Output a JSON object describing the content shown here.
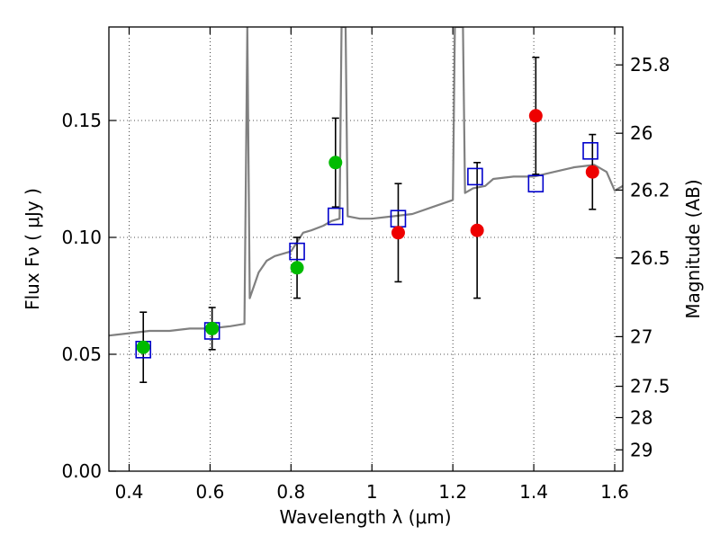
{
  "chart_data": {
    "type": "scatter",
    "xlabel": "Wavelength  λ (μm)",
    "ylabel": "Flux  Fν  ( μJy )",
    "y2label": "Magnitude (AB)",
    "xlim": [
      0.35,
      1.62
    ],
    "ylim": [
      0.0,
      0.19
    ],
    "x_ticks": [
      0.4,
      0.6,
      0.8,
      1.0,
      1.2,
      1.4,
      1.6
    ],
    "x_tick_labels": [
      "0.4",
      "0.6",
      "0.8",
      "1",
      "1.2",
      "1.4",
      "1.6"
    ],
    "y_ticks": [
      0.0,
      0.05,
      0.1,
      0.15
    ],
    "y_tick_labels": [
      "0.00",
      "0.05",
      "0.10",
      "0.15"
    ],
    "mag_ticks": [
      25.8,
      26,
      26.2,
      26.5,
      27,
      27.5,
      28,
      29
    ],
    "mag_tick_labels": [
      "25.8",
      "26",
      "26.2",
      "26.5",
      "27",
      "27.5",
      "28",
      "29"
    ],
    "grid": true,
    "colors": {
      "spectrum": "#808080",
      "model_marker": "#0000cc",
      "obs_green": "#00bb00",
      "obs_red": "#ee0000",
      "errorbar": "#000000"
    },
    "series": [
      {
        "marker": "line",
        "color": "#808080",
        "points": [
          [
            0.35,
            0.058
          ],
          [
            0.4,
            0.059
          ],
          [
            0.45,
            0.06
          ],
          [
            0.5,
            0.06
          ],
          [
            0.55,
            0.061
          ],
          [
            0.6,
            0.061
          ],
          [
            0.65,
            0.062
          ],
          [
            0.685,
            0.063
          ],
          [
            0.692,
            0.19
          ],
          [
            0.698,
            0.074
          ],
          [
            0.72,
            0.085
          ],
          [
            0.74,
            0.09
          ],
          [
            0.76,
            0.092
          ],
          [
            0.78,
            0.093
          ],
          [
            0.8,
            0.094
          ],
          [
            0.83,
            0.102
          ],
          [
            0.85,
            0.103
          ],
          [
            0.88,
            0.105
          ],
          [
            0.9,
            0.107
          ],
          [
            0.92,
            0.108
          ],
          [
            0.925,
            0.19
          ],
          [
            0.935,
            0.19
          ],
          [
            0.94,
            0.109
          ],
          [
            0.97,
            0.108
          ],
          [
            1.0,
            0.108
          ],
          [
            1.05,
            0.109
          ],
          [
            1.1,
            0.11
          ],
          [
            1.15,
            0.113
          ],
          [
            1.2,
            0.116
          ],
          [
            1.205,
            0.19
          ],
          [
            1.225,
            0.19
          ],
          [
            1.23,
            0.119
          ],
          [
            1.25,
            0.121
          ],
          [
            1.28,
            0.122
          ],
          [
            1.3,
            0.125
          ],
          [
            1.35,
            0.126
          ],
          [
            1.4,
            0.126
          ],
          [
            1.45,
            0.128
          ],
          [
            1.5,
            0.13
          ],
          [
            1.55,
            0.131
          ],
          [
            1.58,
            0.128
          ],
          [
            1.6,
            0.12
          ],
          [
            1.62,
            0.122
          ]
        ]
      },
      {
        "marker": "open-square",
        "color": "#0000cc",
        "points": [
          [
            0.435,
            0.052
          ],
          [
            0.605,
            0.06
          ],
          [
            0.815,
            0.094
          ],
          [
            0.91,
            0.109
          ],
          [
            1.065,
            0.108
          ],
          [
            1.255,
            0.126
          ],
          [
            1.405,
            0.123
          ],
          [
            1.54,
            0.137
          ]
        ]
      },
      {
        "marker": "filled-circle",
        "color": "#00bb00",
        "points": [
          {
            "x": 0.435,
            "y": 0.053,
            "yerr": 0.015
          },
          {
            "x": 0.605,
            "y": 0.061,
            "yerr": 0.009
          },
          {
            "x": 0.815,
            "y": 0.087,
            "yerr": 0.013
          },
          {
            "x": 0.91,
            "y": 0.132,
            "yerr": 0.019
          }
        ]
      },
      {
        "marker": "filled-circle",
        "color": "#ee0000",
        "points": [
          {
            "x": 1.065,
            "y": 0.102,
            "yerr": 0.021
          },
          {
            "x": 1.26,
            "y": 0.103,
            "yerr": 0.029
          },
          {
            "x": 1.405,
            "y": 0.152,
            "yerr": 0.025
          },
          {
            "x": 1.545,
            "y": 0.128,
            "yerr": 0.016
          }
        ]
      }
    ]
  }
}
